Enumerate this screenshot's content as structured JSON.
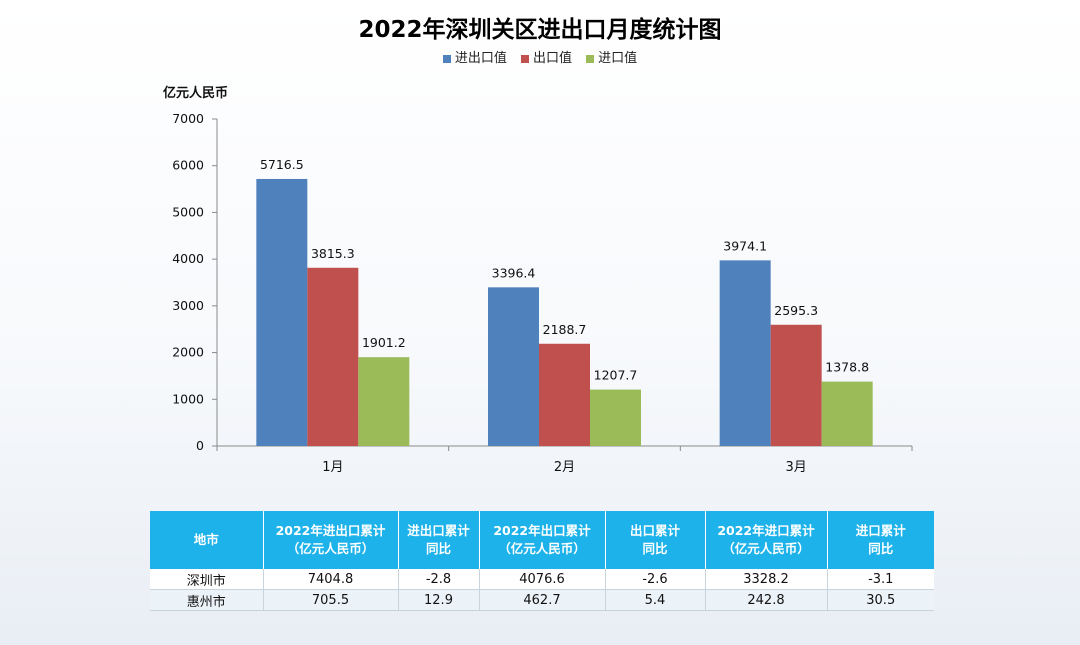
{
  "chart_data": {
    "type": "bar",
    "title": "2022年深圳关区进出口月度统计图",
    "ylabel": "亿元人民币",
    "xlabel": "",
    "categories": [
      "1月",
      "2月",
      "3月"
    ],
    "ylim": [
      0,
      7000
    ],
    "yticks": [
      "0",
      "1000",
      "2000",
      "3000",
      "4000",
      "5000",
      "6000",
      "7000"
    ],
    "grid": false,
    "legend_position": "top",
    "series": [
      {
        "name": "进出口值",
        "color": "#4f81bd",
        "values": [
          5716.5,
          3396.4,
          3974.1
        ],
        "labels": [
          "5716.5",
          "3396.4",
          "3974.1"
        ]
      },
      {
        "name": "出口值",
        "color": "#c0504d",
        "values": [
          3815.3,
          2188.7,
          2595.3
        ],
        "labels": [
          "3815.3",
          "2188.7",
          "2595.3"
        ]
      },
      {
        "name": "进口值",
        "color": "#9bbb59",
        "values": [
          1901.2,
          1207.7,
          1378.8
        ],
        "labels": [
          "1901.2",
          "1207.7",
          "1378.8"
        ]
      }
    ]
  },
  "table": {
    "headers": [
      {
        "line1": "地市",
        "line2": ""
      },
      {
        "line1": "2022年进出口累计",
        "line2": "（亿元人民币）"
      },
      {
        "line1": "进出口累计",
        "line2": "同比"
      },
      {
        "line1": "2022年出口累计",
        "line2": "（亿元人民币）"
      },
      {
        "line1": "出口累计",
        "line2": "同比"
      },
      {
        "line1": "2022年进口累计",
        "line2": "（亿元人民币）"
      },
      {
        "line1": "进口累计",
        "line2": "同比"
      }
    ],
    "rows": [
      [
        "深圳市",
        "7404.8",
        "-2.8",
        "4076.6",
        "-2.6",
        "3328.2",
        "-3.1"
      ],
      [
        "惠州市",
        "705.5",
        "12.9",
        "462.7",
        "5.4",
        "242.8",
        "30.5"
      ]
    ],
    "header_color": "#1eb2ea"
  }
}
